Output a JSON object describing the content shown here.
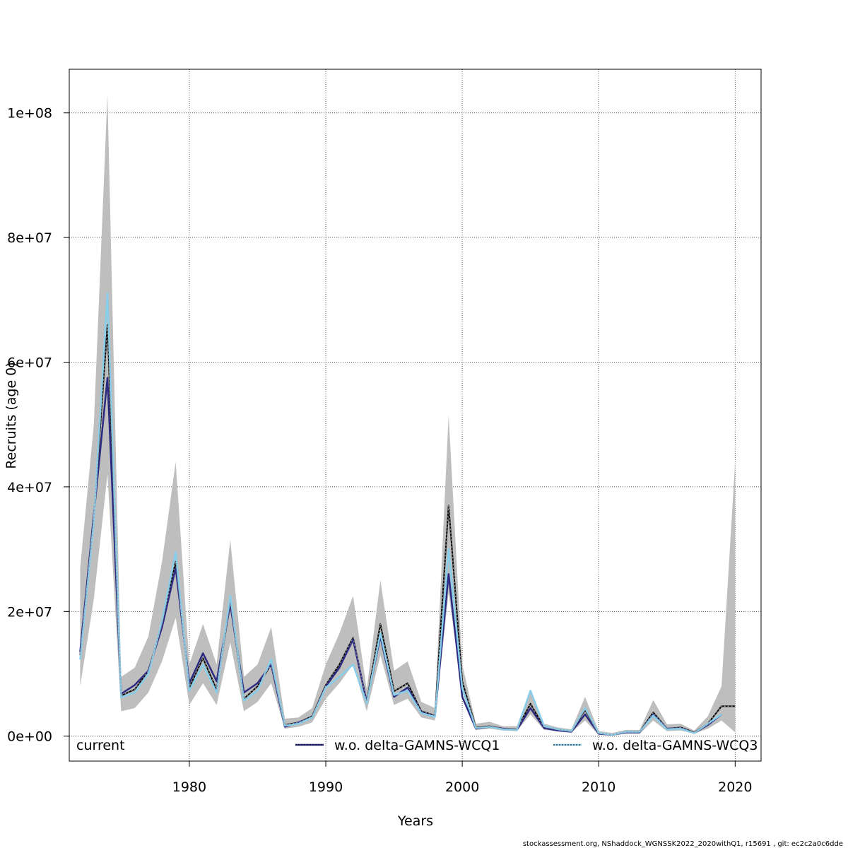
{
  "chart_data": {
    "type": "line",
    "xlabel": "Years",
    "ylabel": "Recruits (age 0)",
    "footer": "stockassessment.org, NShaddock_WGNSSK2022_2020withQ1, r15691 , git: ec2c2a0c6dde",
    "xlim": [
      1971.2,
      2021.9
    ],
    "ylim": [
      -4000000,
      107000000
    ],
    "x_ticks": [
      1980,
      1990,
      2000,
      2010,
      2020
    ],
    "y_ticks": [
      0,
      20000000,
      40000000,
      60000000,
      80000000,
      100000000
    ],
    "y_tick_labels": [
      "0e+00",
      "2e+07",
      "4e+07",
      "6e+07",
      "8e+07",
      "1e+08"
    ],
    "grid": true,
    "legend_position": "bottom",
    "x": [
      1972,
      1973,
      1974,
      1975,
      1976,
      1977,
      1978,
      1979,
      1980,
      1981,
      1982,
      1983,
      1984,
      1985,
      1986,
      1987,
      1988,
      1989,
      1990,
      1991,
      1992,
      1993,
      1994,
      1995,
      1996,
      1997,
      1998,
      1999,
      2000,
      2001,
      2002,
      2003,
      2004,
      2005,
      2006,
      2007,
      2008,
      2009,
      2010,
      2011,
      2012,
      2013,
      2014,
      2015,
      2016,
      2017,
      2018,
      2019,
      2020
    ],
    "band": {
      "name": "current",
      "color": "#bebebe",
      "lower": [
        8000000,
        22000000,
        42000000,
        4000000,
        4500000,
        7000000,
        12000000,
        19000000,
        5000000,
        8500000,
        5000000,
        15000000,
        4000000,
        5500000,
        8500000,
        1200000,
        1500000,
        2200000,
        6000000,
        8500000,
        11500000,
        4000000,
        13000000,
        5000000,
        6000000,
        3000000,
        2500000,
        23000000,
        7000000,
        1000000,
        1200000,
        900000,
        800000,
        3500000,
        1000000,
        800000,
        600000,
        2500000,
        200000,
        100000,
        400000,
        400000,
        2500000,
        800000,
        900000,
        400000,
        1200000,
        2500000,
        600000
      ],
      "upper": [
        27000000,
        50000000,
        103000000,
        9500000,
        11000000,
        16000000,
        28000000,
        44000000,
        11500000,
        18000000,
        11500000,
        31500000,
        9500000,
        11500000,
        17500000,
        2800000,
        3000000,
        4500000,
        11500000,
        16500000,
        22500000,
        7500000,
        25000000,
        10500000,
        12000000,
        5500000,
        4500000,
        51500000,
        11500000,
        2000000,
        2300000,
        1600000,
        1600000,
        7500000,
        2000000,
        1400000,
        1100000,
        6300000,
        800000,
        500000,
        1000000,
        1000000,
        5800000,
        1900000,
        2000000,
        900000,
        3200000,
        8000000,
        44000000
      ]
    },
    "series": [
      {
        "name": "current",
        "color": "#000000",
        "dash": "",
        "width": 2,
        "values": [
          13000000,
          35000000,
          66000000,
          6500000,
          7500000,
          10500000,
          18000000,
          28000000,
          7800000,
          12500000,
          7500000,
          21500000,
          6000000,
          8000000,
          11500000,
          1800000,
          2200000,
          3200000,
          8200000,
          11500000,
          15800000,
          5500000,
          18000000,
          7200000,
          8500000,
          4000000,
          3300000,
          37000000,
          8800000,
          1400000,
          1600000,
          1200000,
          1100000,
          5200000,
          1400000,
          1100000,
          800000,
          4200000,
          500000,
          200000,
          700000,
          700000,
          3800000,
          1200000,
          1400000,
          600000,
          2000000,
          4800000,
          4800000
        ]
      },
      {
        "name": "w.o. delta-GAMNS-WCQ1",
        "color": "#2c2a80",
        "dash": "",
        "width": 2.5,
        "values": [
          13500000,
          35500000,
          57500000,
          6800000,
          8200000,
          10500000,
          17500000,
          27000000,
          8500000,
          13300000,
          8800000,
          21200000,
          7000000,
          8500000,
          11500000,
          1500000,
          2200000,
          3000000,
          8000000,
          11000000,
          15500000,
          5500000,
          16000000,
          6300000,
          7800000,
          3800000,
          3200000,
          26000000,
          6300000,
          1200000,
          1500000,
          1200000,
          1000000,
          4500000,
          1300000,
          900000,
          700000,
          3500000,
          400000,
          200000,
          600000,
          600000,
          3500000,
          1200000,
          1300000,
          500000,
          1800000,
          3500000,
          null
        ]
      },
      {
        "name": "w.o. delta-GAMNS-WCQ3",
        "color": "#87ceeb",
        "dash": "3,3",
        "width": 2.5,
        "values": [
          12300000,
          34500000,
          71000000,
          6200000,
          7000000,
          10000000,
          18500000,
          29500000,
          7300000,
          11500000,
          7000000,
          22500000,
          5700000,
          7300000,
          12300000,
          1700000,
          2000000,
          3000000,
          7800000,
          9500000,
          11500000,
          5300000,
          16500000,
          6600000,
          7300000,
          3700000,
          3100000,
          30000000,
          7700000,
          1300000,
          1500000,
          1100000,
          1000000,
          7300000,
          1600000,
          1100000,
          800000,
          4500000,
          500000,
          200000,
          700000,
          700000,
          3300000,
          1100000,
          1200000,
          500000,
          2000000,
          3500000,
          null
        ]
      }
    ]
  }
}
